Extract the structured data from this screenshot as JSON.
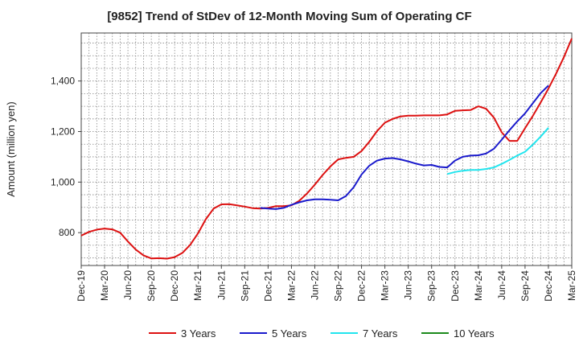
{
  "chart_data": {
    "type": "line",
    "title": "[9852]  Trend of StDev of 12-Month Moving Sum of Operating CF",
    "xlabel": "",
    "ylabel": "Amount (million yen)",
    "ylim": [
      670,
      1590
    ],
    "yticks": [
      800,
      1000,
      1200,
      1400
    ],
    "ytick_labels": [
      "800",
      "1,000",
      "1,200",
      "1,400"
    ],
    "x_range": [
      "Dec-19",
      "Mar-25"
    ],
    "xtick_labels": [
      "Dec-19",
      "Mar-20",
      "Jun-20",
      "Sep-20",
      "Dec-20",
      "Mar-21",
      "Jun-21",
      "Sep-21",
      "Dec-21",
      "Mar-22",
      "Jun-22",
      "Sep-22",
      "Dec-22",
      "Mar-23",
      "Jun-23",
      "Sep-23",
      "Dec-23",
      "Mar-24",
      "Jun-24",
      "Sep-24",
      "Dec-24",
      "Mar-25"
    ],
    "grid": true,
    "legend_position": "bottom",
    "series": [
      {
        "name": "3 Years",
        "color": "#dd1111",
        "start": "Dec-19",
        "values": [
          788,
          803,
          812,
          816,
          813,
          800,
          765,
          733,
          710,
          698,
          699,
          697,
          703,
          720,
          752,
          797,
          853,
          895,
          912,
          913,
          908,
          903,
          897,
          895,
          898,
          905,
          905,
          908,
          926,
          955,
          990,
          1028,
          1062,
          1090,
          1096,
          1100,
          1123,
          1160,
          1202,
          1235,
          1250,
          1260,
          1263,
          1263,
          1264,
          1264,
          1264,
          1268,
          1282,
          1284,
          1285,
          1300,
          1290,
          1255,
          1197,
          1163,
          1163,
          1213,
          1262,
          1315,
          1370,
          1430,
          1495,
          1568
        ]
      },
      {
        "name": "5 Years",
        "color": "#1a1acc",
        "start": "Nov-21",
        "values": [
          898,
          895,
          893,
          898,
          910,
          920,
          928,
          932,
          932,
          930,
          928,
          945,
          980,
          1030,
          1065,
          1085,
          1093,
          1095,
          1090,
          1082,
          1073,
          1066,
          1068,
          1060,
          1058,
          1085,
          1100,
          1105,
          1106,
          1113,
          1132,
          1168,
          1205,
          1240,
          1272,
          1312,
          1352,
          1382
        ]
      },
      {
        "name": "7 Years",
        "color": "#22e5ee",
        "start": "Nov-23",
        "values": [
          1032,
          1040,
          1045,
          1048,
          1048,
          1052,
          1058,
          1072,
          1088,
          1105,
          1120,
          1148,
          1180,
          1215
        ]
      },
      {
        "name": "10 Years",
        "color": "#1c8a1c",
        "start": "Dec-24",
        "values": []
      }
    ]
  }
}
